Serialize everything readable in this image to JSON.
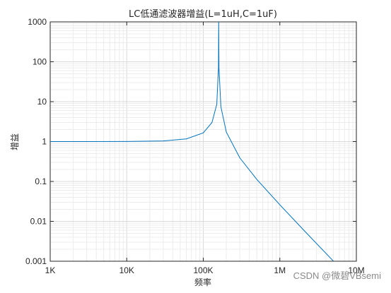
{
  "chart_data": {
    "type": "line",
    "title": "LC低通滤波器增益(L=1uH,C=1uF)",
    "xlabel": "频率",
    "ylabel": "增益",
    "xscale": "log",
    "yscale": "log",
    "xlim": [
      1000,
      10000000
    ],
    "ylim": [
      0.001,
      1000
    ],
    "grid": true,
    "x_ticks": [
      1000,
      10000,
      100000,
      1000000,
      10000000
    ],
    "x_tick_labels": [
      "1K",
      "10K",
      "100K",
      "1M",
      "10M"
    ],
    "y_ticks": [
      0.001,
      0.01,
      0.1,
      1,
      10,
      100,
      1000
    ],
    "y_tick_labels": [
      "0.001",
      "0.01",
      "0.1",
      "1",
      "10",
      "100",
      "1000"
    ],
    "series": [
      {
        "color": "#0072BD",
        "x": [
          1000,
          3000,
          10000,
          30000,
          60000,
          100000,
          130000,
          150000,
          158000,
          159155,
          160300,
          170000,
          200000,
          300000,
          500000,
          1000000,
          2000000,
          5000000
        ],
        "y": [
          1.0,
          1.0004,
          1.004,
          1.037,
          1.166,
          1.651,
          3.0,
          8.6,
          72.5,
          1000,
          69.7,
          7.47,
          1.724,
          0.391,
          0.1126,
          0.02599,
          0.00637,
          0.001014
        ]
      }
    ]
  },
  "watermark": "CSDN @微碧VBsemi"
}
